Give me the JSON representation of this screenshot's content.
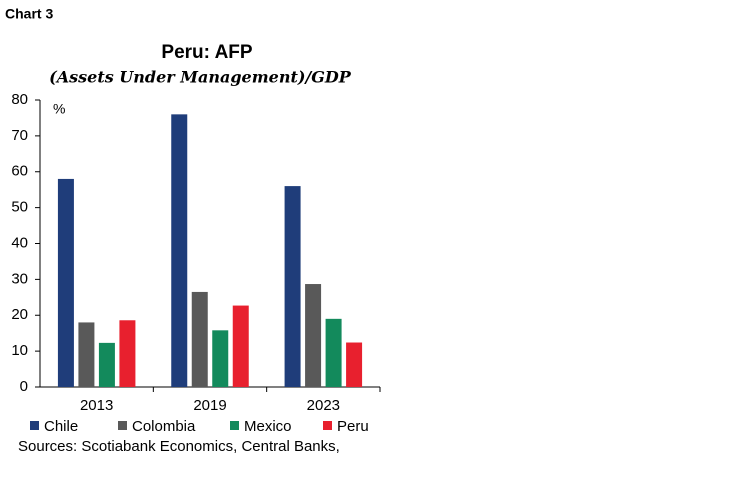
{
  "chart_data": {
    "type": "bar",
    "label": "Chart 3",
    "title": "Peru: AFP",
    "subtitle": "(Assets Under Management)/GDP",
    "y_label": "%",
    "categories": [
      "2013",
      "2019",
      "2023"
    ],
    "series": [
      {
        "name": "Chile",
        "color": "#1f3d7a",
        "values": [
          58,
          76,
          56
        ]
      },
      {
        "name": "Colombia",
        "color": "#595959",
        "values": [
          18,
          26.5,
          28.7
        ]
      },
      {
        "name": "Mexico",
        "color": "#138a5c",
        "values": [
          12.3,
          15.8,
          19
        ]
      },
      {
        "name": "Peru",
        "color": "#e8202e",
        "values": [
          18.6,
          22.7,
          12.4
        ]
      }
    ],
    "ylim": [
      0,
      80
    ],
    "yticks": [
      0,
      10,
      20,
      30,
      40,
      50,
      60,
      70,
      80
    ],
    "grid": false,
    "source": "Sources: Scotiabank Economics, Central Banks,"
  }
}
